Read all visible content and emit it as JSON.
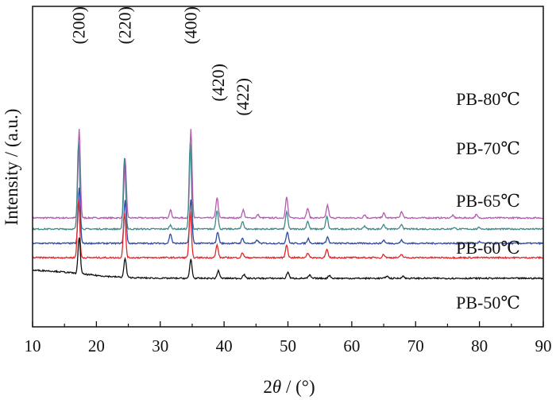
{
  "chart_data": {
    "type": "line",
    "xlabel_prefix": "2",
    "xlabel_symbol": "θ",
    "xlabel_suffix": " / (°)",
    "ylabel": "Intensity / (a.u.)",
    "xlim": [
      10,
      90
    ],
    "xticks": [
      "10",
      "20",
      "30",
      "40",
      "50",
      "60",
      "70",
      "80",
      "90"
    ],
    "grid": false,
    "peak_labels": [
      {
        "text": "(200)",
        "x": 17.3
      },
      {
        "text": "(220)",
        "x": 24.5
      },
      {
        "text": "(400)",
        "x": 34.8
      },
      {
        "text": "(420)",
        "x": 39.1
      },
      {
        "text": "(422)",
        "x": 43.0
      }
    ],
    "series": [
      {
        "name": "PB-80℃",
        "color": "#b25bb0",
        "baseline": 0.8,
        "peaks": [
          [
            17.3,
            5.6
          ],
          [
            24.5,
            3.7
          ],
          [
            31.6,
            0.5
          ],
          [
            34.8,
            5.6
          ],
          [
            38.9,
            1.3
          ],
          [
            43.0,
            0.5
          ],
          [
            45.3,
            0.2
          ],
          [
            49.8,
            1.3
          ],
          [
            53.1,
            0.6
          ],
          [
            56.2,
            0.8
          ],
          [
            62.0,
            0.2
          ],
          [
            65.0,
            0.3
          ],
          [
            67.8,
            0.4
          ],
          [
            75.8,
            0.15
          ],
          [
            79.5,
            0.2
          ]
        ]
      },
      {
        "name": "PB-70℃",
        "color": "#3f8888",
        "baseline": 0.1,
        "peaks": [
          [
            17.2,
            5.5
          ],
          [
            24.4,
            4.5
          ],
          [
            31.6,
            0.25
          ],
          [
            34.7,
            5.4
          ],
          [
            38.9,
            1.2
          ],
          [
            42.9,
            0.5
          ],
          [
            49.8,
            1.1
          ],
          [
            53.1,
            0.5
          ],
          [
            56.1,
            0.8
          ],
          [
            62.0,
            0.2
          ],
          [
            65.0,
            0.3
          ],
          [
            67.8,
            0.3
          ],
          [
            76.0,
            0.1
          ],
          [
            80.0,
            0.1
          ]
        ]
      },
      {
        "name": "PB-65℃",
        "color": "#2e4aa4",
        "baseline": -0.8,
        "peaks": [
          [
            17.3,
            3.5
          ],
          [
            24.5,
            2.7
          ],
          [
            31.6,
            0.6
          ],
          [
            34.8,
            2.8
          ],
          [
            39.0,
            0.7
          ],
          [
            42.9,
            0.3
          ],
          [
            45.2,
            0.2
          ],
          [
            49.9,
            0.7
          ],
          [
            53.2,
            0.3
          ],
          [
            56.2,
            0.4
          ],
          [
            65.0,
            0.2
          ],
          [
            67.8,
            0.2
          ],
          [
            80.0,
            0.1
          ]
        ]
      },
      {
        "name": "PB-60℃",
        "color": "#e3262a",
        "baseline": -1.7,
        "peaks": [
          [
            17.2,
            3.7
          ],
          [
            24.4,
            2.8
          ],
          [
            34.7,
            2.9
          ],
          [
            38.9,
            0.8
          ],
          [
            42.9,
            0.3
          ],
          [
            49.8,
            0.8
          ],
          [
            53.1,
            0.3
          ],
          [
            56.1,
            0.5
          ],
          [
            65.0,
            0.2
          ],
          [
            67.8,
            0.2
          ]
        ]
      },
      {
        "name": "PB-50℃",
        "color": "#111111",
        "baseline": -3.0,
        "hump": 0.5,
        "peaks": [
          [
            17.3,
            2.3
          ],
          [
            24.5,
            1.2
          ],
          [
            34.8,
            1.2
          ],
          [
            39.1,
            0.5
          ],
          [
            43.1,
            0.25
          ],
          [
            50.0,
            0.4
          ],
          [
            53.4,
            0.2
          ],
          [
            56.5,
            0.2
          ],
          [
            65.5,
            0.15
          ],
          [
            68.0,
            0.15
          ]
        ]
      }
    ]
  }
}
